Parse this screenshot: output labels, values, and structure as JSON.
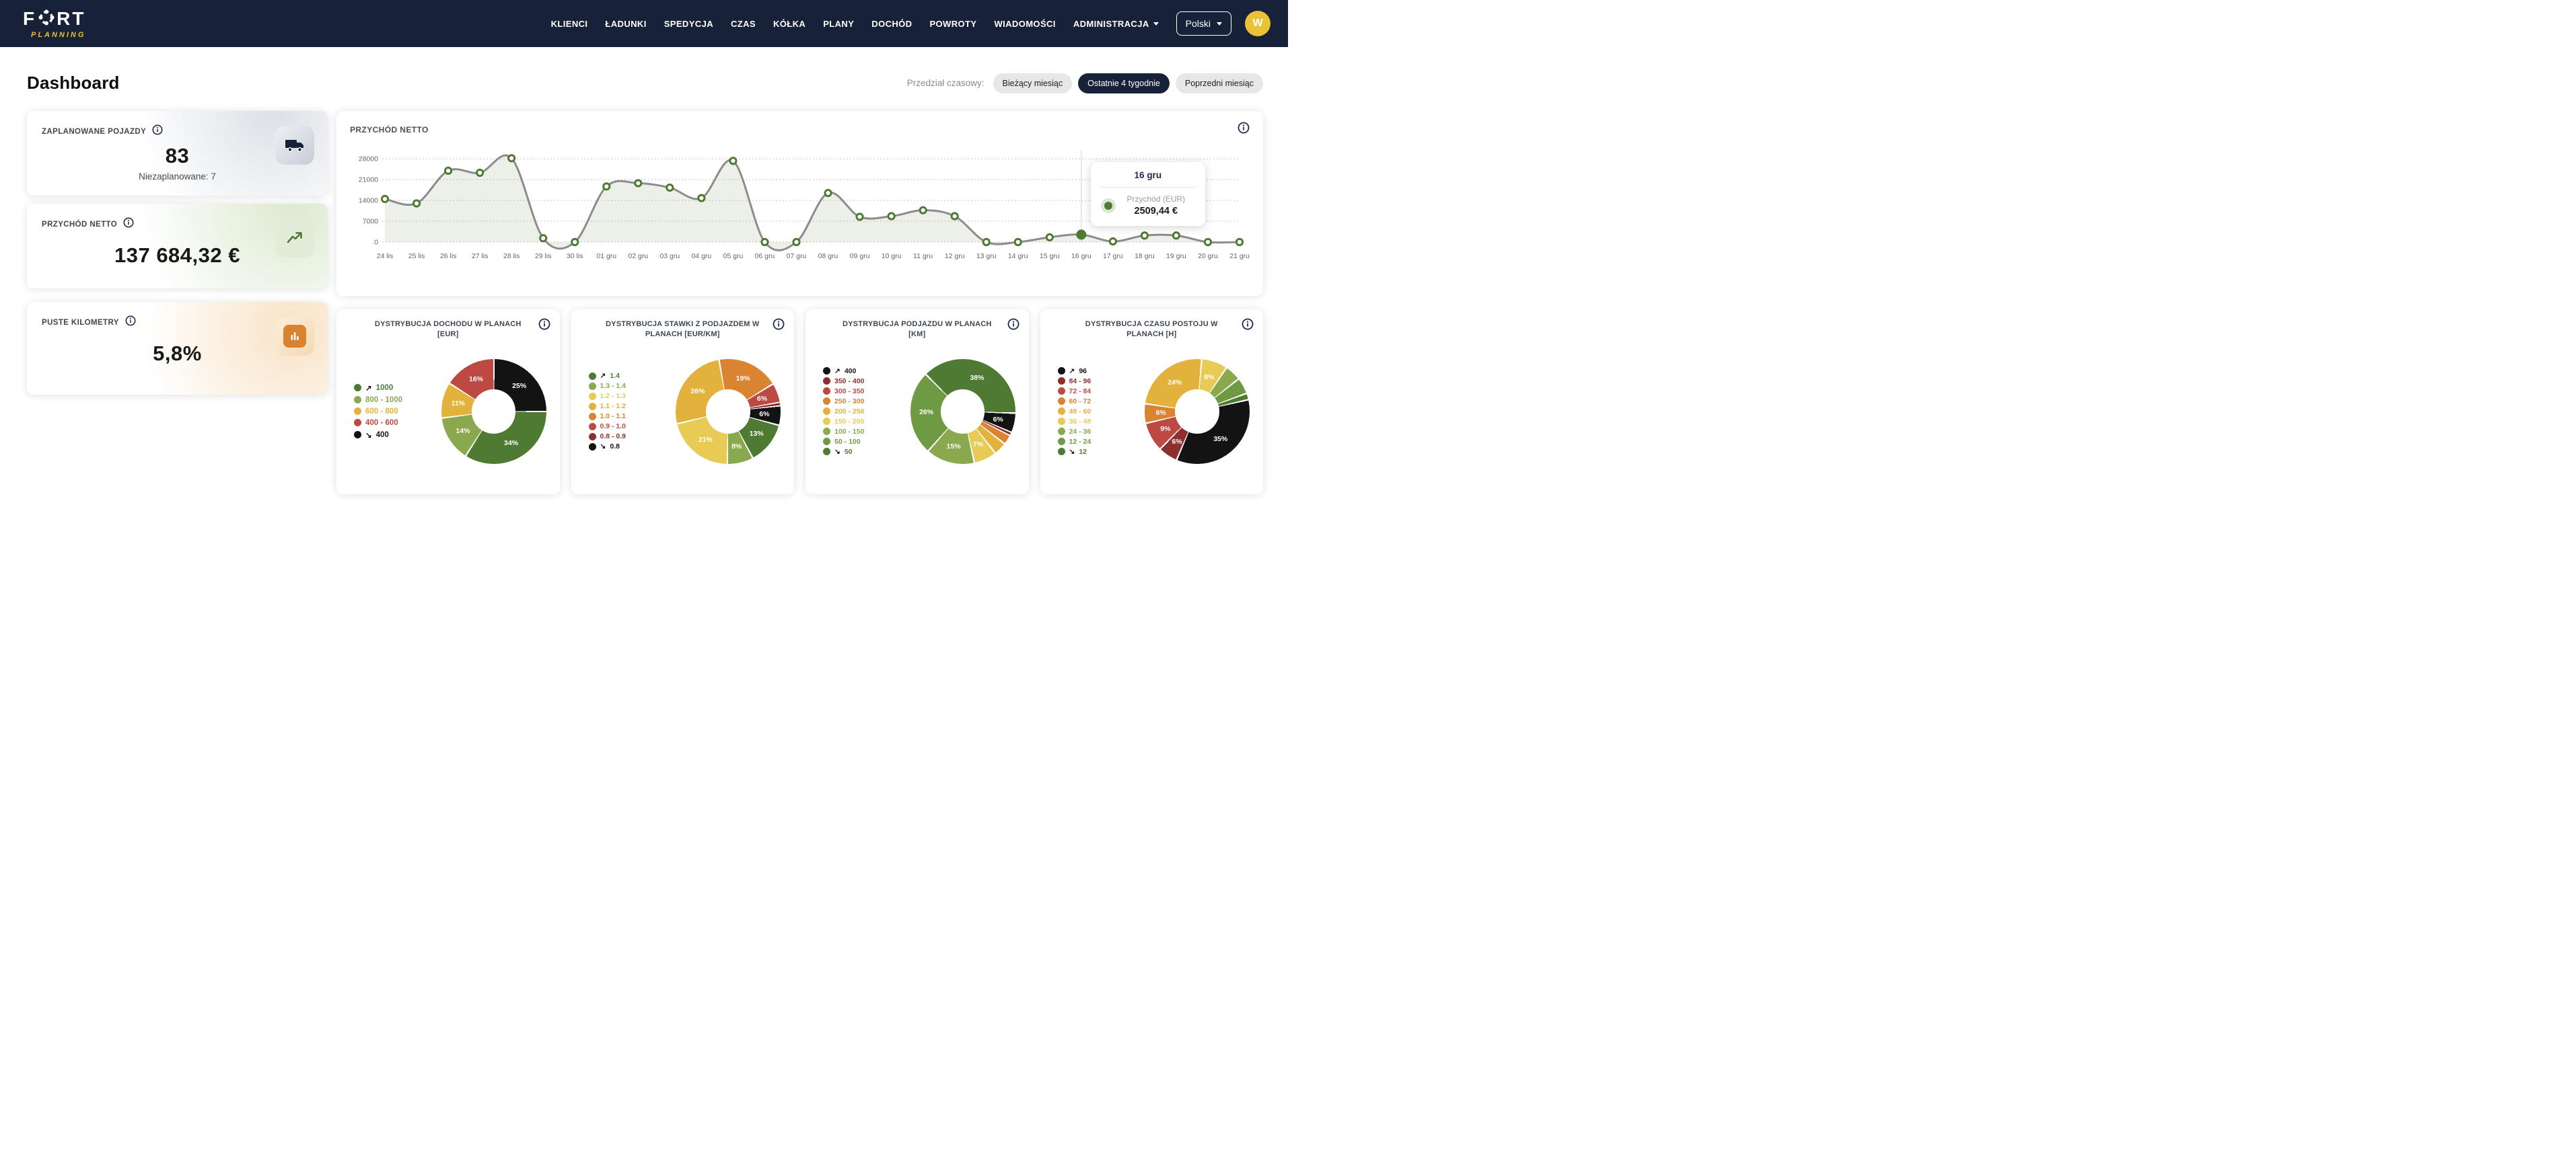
{
  "navbar": {
    "brand": {
      "f": "F",
      "rt": "RT",
      "sub": "PLANNING"
    },
    "items": [
      {
        "label": "KLIENCI"
      },
      {
        "label": "ŁADUNKI"
      },
      {
        "label": "SPEDYCJA"
      },
      {
        "label": "CZAS"
      },
      {
        "label": "KÓŁKA"
      },
      {
        "label": "PLANY"
      },
      {
        "label": "DOCHÓD"
      },
      {
        "label": "POWROTY"
      },
      {
        "label": "WIADOMOŚCI"
      },
      {
        "label": "ADMINISTRACJA",
        "caret": true
      }
    ],
    "language": "Polski",
    "avatar": "W"
  },
  "header": {
    "title": "Dashboard",
    "range_label": "Przedział czasowy:",
    "ranges": [
      {
        "label": "Bieżący miesiąc",
        "active": false
      },
      {
        "label": "Ostatnie 4 tygodnie",
        "active": true
      },
      {
        "label": "Poprzedni miesiąc",
        "active": false
      }
    ]
  },
  "stat_cards": {
    "vehicles": {
      "title": "ZAPLANOWANE POJAZDY",
      "value": "83",
      "subtitle": "Niezaplanowane: 7",
      "icon": "truck-icon",
      "theme": "gray"
    },
    "revenue": {
      "title": "PRZYCHÓD NETTO",
      "value": "137 684,32 €",
      "icon": "trend-up-icon",
      "theme": "green"
    },
    "empty_km": {
      "title": "PUSTE KILOMETRY",
      "value": "5,8%",
      "icon": "bar-chart-icon",
      "theme": "orange"
    }
  },
  "palette": {
    "black": "#131313",
    "dark_red": "#8f2e2e",
    "red": "#bd4a42",
    "orange": "#da8330",
    "yellow": "#e3b23c",
    "light_yellow": "#e7cb55",
    "light_green": "#8aa84d",
    "green": "#6f9a44",
    "dark_green": "#4e7a33"
  },
  "line_chart": {
    "type": "area",
    "title": "PRZYCHÓD NETTO",
    "series_name": "Przychód (EUR)",
    "line_color": "#8c8c8c",
    "marker_color": "#4e7a33",
    "fill_color": "rgba(78,122,51,0.11)",
    "y_ticks": [
      0,
      7000,
      14000,
      21000,
      28000
    ],
    "y_max": 29400,
    "categories": [
      "24 lis",
      "25 lis",
      "26 lis",
      "27 lis",
      "28 lis",
      "29 lis",
      "30 lis",
      "01 gru",
      "02 gru",
      "03 gru",
      "04 gru",
      "05 gru",
      "06 gru",
      "07 gru",
      "08 gru",
      "09 gru",
      "10 gru",
      "11 gru",
      "12 gru",
      "13 gru",
      "14 gru",
      "15 gru",
      "16 gru",
      "17 gru",
      "18 gru",
      "19 gru",
      "20 gru",
      "21 gru"
    ],
    "values": [
      14500,
      13000,
      24000,
      23300,
      28200,
      1300,
      0,
      18700,
      19800,
      18300,
      14800,
      27300,
      0,
      0,
      16500,
      8500,
      8700,
      10700,
      8700,
      0,
      0,
      1600,
      2509.44,
      200,
      2200,
      2200,
      0,
      0
    ],
    "active_index": 22,
    "tooltip": {
      "date": "16 gru",
      "series": "Przychód (EUR)",
      "value": "2509,44 €"
    }
  },
  "donut_charts": [
    {
      "title": "DYSTRYBUCJA DOCHODU W PLANACH [EUR]",
      "start_deg": 0,
      "legend": [
        {
          "arrow": "↗",
          "text": "1000",
          "color": "dark_green"
        },
        {
          "arrow": "",
          "text": "800 - 1000",
          "color": "light_green"
        },
        {
          "arrow": "",
          "text": "600 - 800",
          "color": "yellow"
        },
        {
          "arrow": "",
          "text": "400 - 600",
          "color": "red"
        },
        {
          "arrow": "↘",
          "text": "400",
          "color": "black"
        }
      ],
      "segments": [
        {
          "color": "black",
          "pct": 25
        },
        {
          "color": "dark_green",
          "pct": 34
        },
        {
          "color": "light_green",
          "pct": 14
        },
        {
          "color": "yellow",
          "pct": 11
        },
        {
          "color": "red",
          "pct": 16
        }
      ]
    },
    {
      "title": "DYSTRYBUCJA STAWKI Z PODJAZDEM W PLANACH [EUR/KM]",
      "start_deg": -10,
      "legend": [
        {
          "arrow": "↗",
          "text": "1.4",
          "color": "dark_green"
        },
        {
          "arrow": "",
          "text": "1.3 - 1.4",
          "color": "light_green"
        },
        {
          "arrow": "",
          "text": "1.2 - 1.3",
          "color": "light_yellow"
        },
        {
          "arrow": "",
          "text": "1.1 - 1.2",
          "color": "yellow"
        },
        {
          "arrow": "",
          "text": "1.0 - 1.1",
          "color": "orange"
        },
        {
          "arrow": "",
          "text": "0.9 - 1.0",
          "color": "red"
        },
        {
          "arrow": "",
          "text": "0.8 - 0.9",
          "color": "dark_red"
        },
        {
          "arrow": "↘",
          "text": "0.8",
          "color": "black"
        }
      ],
      "segments": [
        {
          "color": "orange",
          "pct": 19
        },
        {
          "color": "red",
          "pct": 6
        },
        {
          "color": "dark_red",
          "pct": 1
        },
        {
          "color": "black",
          "pct": 6
        },
        {
          "color": "dark_green",
          "pct": 13
        },
        {
          "color": "light_green",
          "pct": 8
        },
        {
          "color": "light_yellow",
          "pct": 21
        },
        {
          "color": "yellow",
          "pct": 26
        }
      ]
    },
    {
      "title": "DYSTRYBUCJA PODJAZDU W PLANACH [KM]",
      "start_deg": -45,
      "legend": [
        {
          "arrow": "↗",
          "text": "400",
          "color": "black"
        },
        {
          "arrow": "",
          "text": "350 - 400",
          "color": "dark_red"
        },
        {
          "arrow": "",
          "text": "300 - 350",
          "color": "red"
        },
        {
          "arrow": "",
          "text": "250 - 300",
          "color": "orange"
        },
        {
          "arrow": "",
          "text": "200 - 250",
          "color": "yellow"
        },
        {
          "arrow": "",
          "text": "150 - 200",
          "color": "light_yellow"
        },
        {
          "arrow": "",
          "text": "100 - 150",
          "color": "light_green"
        },
        {
          "arrow": "",
          "text": "50 - 100",
          "color": "green"
        },
        {
          "arrow": "↘",
          "text": "50",
          "color": "dark_green"
        }
      ],
      "segments": [
        {
          "color": "dark_green",
          "pct": 38
        },
        {
          "color": "black",
          "pct": 6
        },
        {
          "color": "dark_red",
          "pct": 1
        },
        {
          "color": "orange",
          "pct": 3
        },
        {
          "color": "yellow",
          "pct": 4
        },
        {
          "color": "light_yellow",
          "pct": 7
        },
        {
          "color": "light_green",
          "pct": 15
        },
        {
          "color": "green",
          "pct": 26
        }
      ]
    },
    {
      "title": "DYSTRYBUCJA CZASU POSTOJU W PLANACH [H]",
      "start_deg": 5,
      "legend": [
        {
          "arrow": "↗",
          "text": "96",
          "color": "black"
        },
        {
          "arrow": "",
          "text": "84 - 96",
          "color": "dark_red"
        },
        {
          "arrow": "",
          "text": "72 - 84",
          "color": "red"
        },
        {
          "arrow": "",
          "text": "60 - 72",
          "color": "orange"
        },
        {
          "arrow": "",
          "text": "48 - 60",
          "color": "yellow"
        },
        {
          "arrow": "",
          "text": "36 - 48",
          "color": "light_yellow"
        },
        {
          "arrow": "",
          "text": "24 - 36",
          "color": "light_green"
        },
        {
          "arrow": "",
          "text": "12 - 24",
          "color": "green"
        },
        {
          "arrow": "↘",
          "text": "12",
          "color": "dark_green"
        }
      ],
      "segments": [
        {
          "color": "light_yellow",
          "pct": 8
        },
        {
          "color": "light_green",
          "pct": 5
        },
        {
          "color": "green",
          "pct": 5
        },
        {
          "color": "dark_green",
          "pct": 2
        },
        {
          "color": "black",
          "pct": 35
        },
        {
          "color": "dark_red",
          "pct": 6
        },
        {
          "color": "red",
          "pct": 9
        },
        {
          "color": "orange",
          "pct": 6
        },
        {
          "color": "yellow",
          "pct": 24
        }
      ]
    }
  ]
}
